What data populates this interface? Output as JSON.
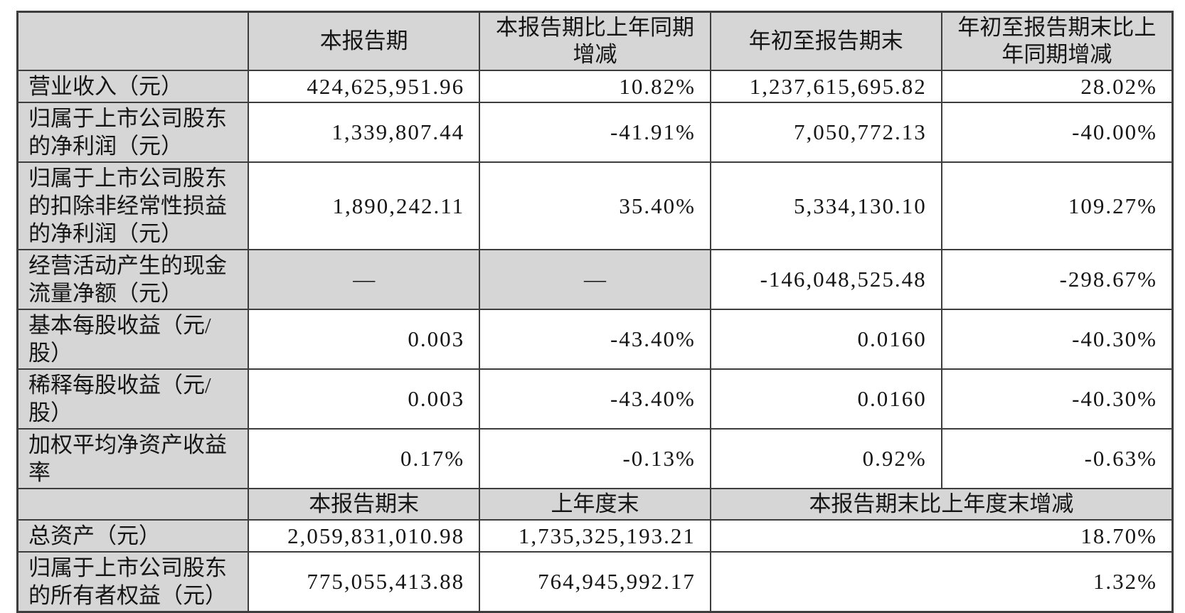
{
  "colors": {
    "shaded_bg": "#d6d6d6",
    "border": "#3d3d3d",
    "text": "#151515",
    "page_bg": "#ffffff"
  },
  "table": {
    "header_row_1": {
      "col1": "",
      "col2": "本报告期",
      "col3": "本报告期比上年同期增减",
      "col4": "年初至报告期末",
      "col5": "年初至报告期末比上年同期增减"
    },
    "section1_rows": [
      {
        "label": "营业收入（元）",
        "cells": [
          {
            "text": "424,625,951.96"
          },
          {
            "text": "10.82%"
          },
          {
            "text": "1,237,615,695.82"
          },
          {
            "text": "28.02%"
          }
        ]
      },
      {
        "label": "归属于上市公司股东的净利润（元）",
        "cells": [
          {
            "text": "1,339,807.44"
          },
          {
            "text": "-41.91%"
          },
          {
            "text": "7,050,772.13"
          },
          {
            "text": "-40.00%"
          }
        ]
      },
      {
        "label": "归属于上市公司股东的扣除非经常性损益的净利润（元）",
        "cells": [
          {
            "text": "1,890,242.11"
          },
          {
            "text": "35.40%"
          },
          {
            "text": "5,334,130.10"
          },
          {
            "text": "109.27%"
          }
        ]
      },
      {
        "label": "经营活动产生的现金流量净额（元）",
        "cells": [
          {
            "text": "—",
            "dash": true
          },
          {
            "text": "—",
            "dash": true
          },
          {
            "text": "-146,048,525.48"
          },
          {
            "text": "-298.67%"
          }
        ]
      },
      {
        "label": "基本每股收益（元/股）",
        "cells": [
          {
            "text": "0.003"
          },
          {
            "text": "-43.40%"
          },
          {
            "text": "0.0160"
          },
          {
            "text": "-40.30%"
          }
        ]
      },
      {
        "label": "稀释每股收益（元/股）",
        "cells": [
          {
            "text": "0.003"
          },
          {
            "text": "-43.40%"
          },
          {
            "text": "0.0160"
          },
          {
            "text": "-40.30%"
          }
        ]
      },
      {
        "label": "加权平均净资产收益率",
        "cells": [
          {
            "text": "0.17%"
          },
          {
            "text": "-0.13%"
          },
          {
            "text": "0.92%"
          },
          {
            "text": "-0.63%"
          }
        ]
      }
    ],
    "header_row_2": {
      "col1": "",
      "col2": "本报告期末",
      "col3": "上年度末",
      "col4_5": "本报告期末比上年度末增减"
    },
    "section2_rows": [
      {
        "label": "总资产（元）",
        "cells": [
          {
            "text": "2,059,831,010.98"
          },
          {
            "text": "1,735,325,193.21"
          },
          {
            "text": "18.70%",
            "colspan": 2
          }
        ]
      },
      {
        "label": "归属于上市公司股东的所有者权益（元）",
        "cells": [
          {
            "text": "775,055,413.88"
          },
          {
            "text": "764,945,992.17"
          },
          {
            "text": "1.32%",
            "colspan": 2
          }
        ]
      }
    ]
  }
}
